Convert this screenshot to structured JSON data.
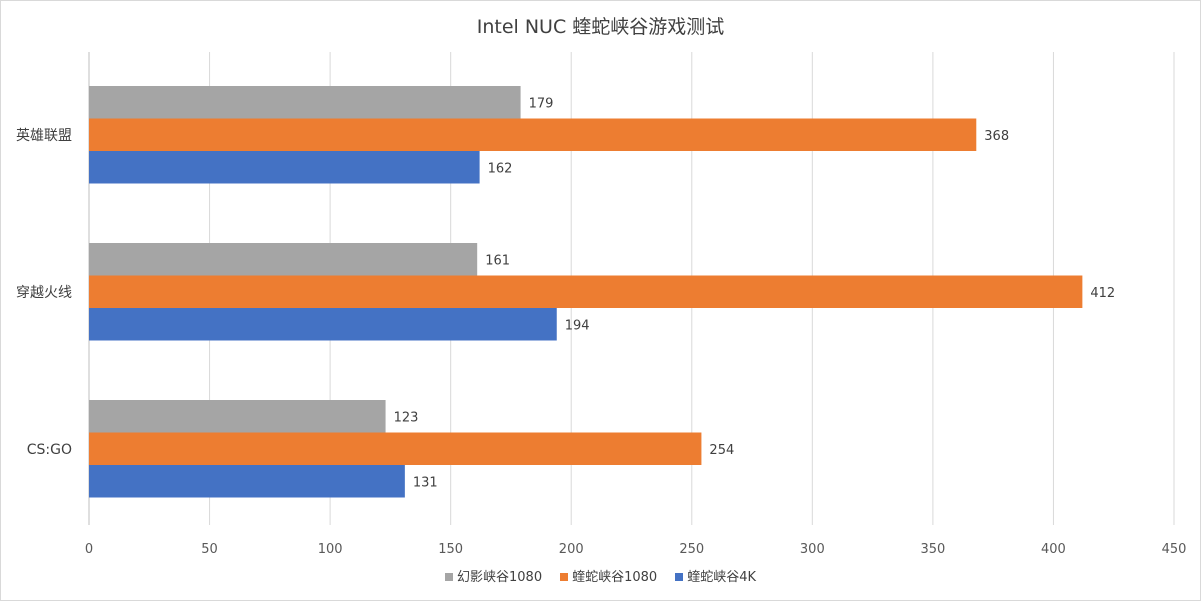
{
  "chart_data": {
    "type": "bar",
    "orientation": "horizontal",
    "title": "Intel NUC 蝰蛇峡谷游戏测试",
    "categories": [
      "英雄联盟",
      "穿越火线",
      "CS:GO"
    ],
    "series": [
      {
        "name": "幻影峡谷1080",
        "color": "#a5a5a5",
        "values": [
          179,
          161,
          123
        ]
      },
      {
        "name": "蝰蛇峡谷1080",
        "color": "#ed7d31",
        "values": [
          368,
          412,
          254
        ]
      },
      {
        "name": "蝰蛇峡谷4K",
        "color": "#4472c4",
        "values": [
          162,
          194,
          131
        ]
      }
    ],
    "xlim": [
      0,
      450
    ],
    "xticks": [
      0,
      50,
      100,
      150,
      200,
      250,
      300,
      350,
      400,
      450
    ],
    "grid": "vertical",
    "legend_position": "bottom",
    "data_labels": true
  }
}
